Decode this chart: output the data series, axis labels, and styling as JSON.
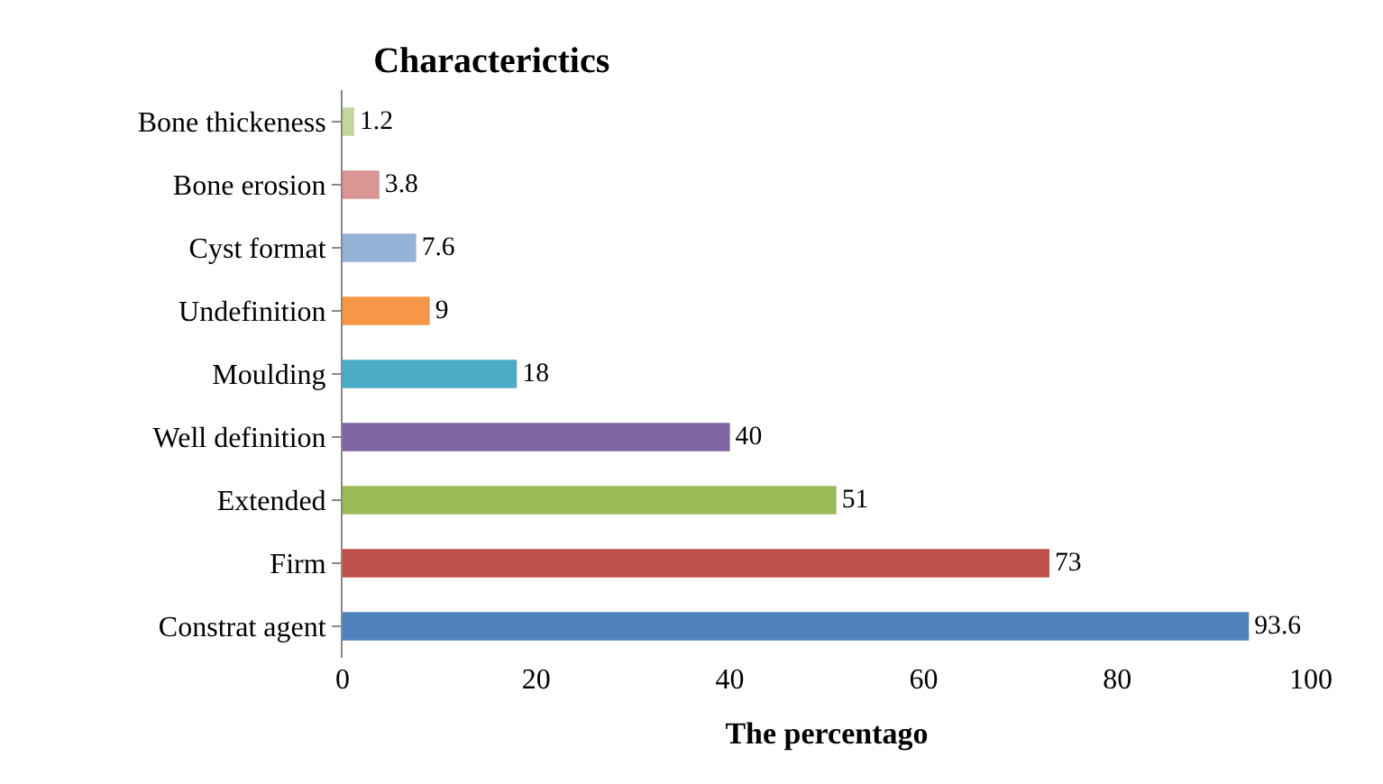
{
  "chart_data": {
    "type": "bar",
    "orientation": "horizontal",
    "title": "Characterictics",
    "xlabel": "The percentago",
    "categories": [
      "Bone thickeness",
      "Bone erosion",
      "Cyst format",
      "Undefinition",
      "Moulding",
      "Well definition",
      "Extended",
      "Firm",
      "Constrat agent"
    ],
    "values": [
      1.2,
      3.8,
      7.6,
      9,
      18,
      40,
      51,
      73,
      93.6
    ],
    "colors": [
      "#c3d69b",
      "#d99694",
      "#95b3d7",
      "#f79646",
      "#4bacc6",
      "#8064a2",
      "#9bbb59",
      "#c0504d",
      "#4f81bd"
    ],
    "xlim": [
      0,
      100
    ],
    "xticks": [
      0,
      20,
      40,
      60,
      80,
      100
    ],
    "data_labels": true
  }
}
